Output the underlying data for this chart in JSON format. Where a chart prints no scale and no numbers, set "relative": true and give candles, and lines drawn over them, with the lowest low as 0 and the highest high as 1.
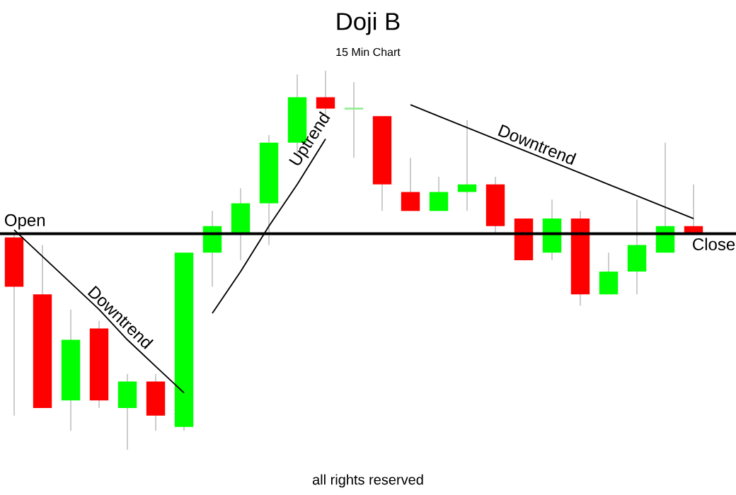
{
  "chart_data": {
    "type": "candlestick",
    "title": "Doji B",
    "subtitle": "15 Min Chart",
    "relative": true,
    "tick_labels": false,
    "categories": [
      null,
      null,
      null,
      null,
      null,
      null,
      null,
      null,
      null,
      null,
      null,
      null,
      null,
      null,
      null,
      null,
      null,
      null,
      null,
      null,
      null,
      null,
      null,
      null,
      null
    ],
    "ohlc": [
      [
        0.56,
        0.57,
        0.09,
        0.43
      ],
      [
        0.41,
        0.54,
        0.11,
        0.11
      ],
      [
        0.13,
        0.37,
        0.05,
        0.29
      ],
      [
        0.32,
        0.34,
        0.11,
        0.13
      ],
      [
        0.11,
        0.2,
        0,
        0.18
      ],
      [
        0.18,
        0.2,
        0.05,
        0.09
      ],
      [
        0.06,
        0.52,
        0.05,
        0.52
      ],
      [
        0.52,
        0.63,
        0.43,
        0.59
      ],
      [
        0.57,
        0.69,
        0.5,
        0.65
      ],
      [
        0.65,
        0.83,
        0.54,
        0.81
      ],
      [
        0.81,
        0.99,
        0.78,
        0.93
      ],
      [
        0.93,
        1,
        0.88,
        0.9
      ],
      [
        0.9,
        0.97,
        0.77,
        0.9
      ],
      [
        0.88,
        0.88,
        0.63,
        0.7
      ],
      [
        0.68,
        0.77,
        0.63,
        0.63
      ],
      [
        0.63,
        0.72,
        0.63,
        0.68
      ],
      [
        0.68,
        0.87,
        0.63,
        0.7
      ],
      [
        0.7,
        0.72,
        0.57,
        0.59
      ],
      [
        0.61,
        0.61,
        0.5,
        0.5
      ],
      [
        0.52,
        0.66,
        0.5,
        0.61
      ],
      [
        0.61,
        0.63,
        0.38,
        0.41
      ],
      [
        0.41,
        0.52,
        0.41,
        0.47
      ],
      [
        0.47,
        0.66,
        0.41,
        0.54
      ],
      [
        0.52,
        0.81,
        0.52,
        0.59
      ],
      [
        0.59,
        0.7,
        0.57,
        0.57
      ]
    ],
    "colors": [
      "#ff0000",
      "#ff0000",
      "#00ff00",
      "#ff0000",
      "#00ff00",
      "#ff0000",
      "#00ff00",
      "#00ff00",
      "#00ff00",
      "#00ff00",
      "#00ff00",
      "#ff0000",
      "#90ee90",
      "#ff0000",
      "#ff0000",
      "#00ff00",
      "#00ff00",
      "#ff0000",
      "#ff0000",
      "#00ff00",
      "#ff0000",
      "#00ff00",
      "#00ff00",
      "#00ff00",
      "#ff0000"
    ],
    "series": [
      {
        "type": "line",
        "color": "#000000",
        "values": [
          0.58,
          0.51,
          0.44,
          0.37,
          0.29,
          0.22,
          0.15,
          null,
          null,
          null,
          null,
          null,
          null,
          null,
          null,
          null,
          null,
          null,
          null,
          null,
          null,
          null,
          null,
          null,
          null
        ]
      },
      {
        "type": "line",
        "color": "#000000",
        "values": [
          null,
          null,
          null,
          null,
          null,
          null,
          null,
          0.36,
          0.47,
          0.59,
          0.7,
          0.82,
          null,
          null,
          null,
          null,
          null,
          null,
          null,
          null,
          null,
          null,
          null,
          null,
          null
        ]
      },
      {
        "type": "line",
        "color": "#000000",
        "values": [
          null,
          null,
          null,
          null,
          null,
          null,
          null,
          null,
          null,
          null,
          null,
          null,
          null,
          null,
          0.91,
          0.88,
          0.85,
          0.82,
          0.79,
          0.76,
          0.73,
          0.7,
          0.67,
          0.64,
          0.61
        ]
      }
    ],
    "ref_lines": [
      {
        "axis": "y",
        "value": 0.57,
        "color": "#000000"
      }
    ],
    "annotations": [
      {
        "text": "Open",
        "y": 0.57
      },
      {
        "text": "Close",
        "y": 0.57
      },
      {
        "text": "Downtrend",
        "y": 0.33
      },
      {
        "text": "Uptrend",
        "y": 0.8
      },
      {
        "text": "Downtrend",
        "y": 0.78
      },
      "all rights reserved"
    ]
  }
}
